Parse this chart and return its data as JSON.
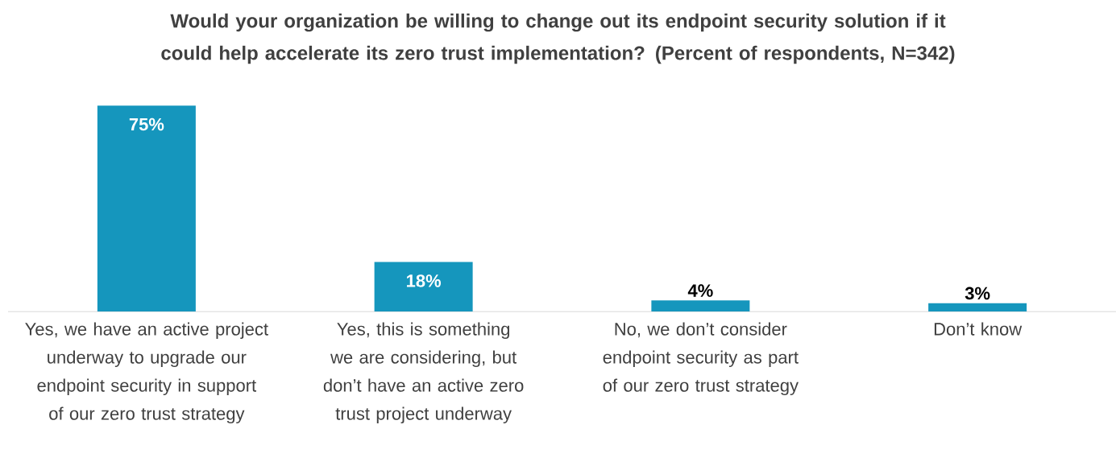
{
  "chart_data": {
    "type": "bar",
    "title": "Would your organization be willing to change out its endpoint security solution if it could help accelerate its zero trust implementation? (Percent of respondents, N=342)",
    "categories": [
      "Yes, we have an active project underway to upgrade our endpoint security in support of our zero trust strategy",
      "Yes, this is something we are considering, but don’t have an active zero trust project underway",
      "No, we don’t consider endpoint security as part of our zero trust strategy",
      "Don’t know"
    ],
    "values": [
      75,
      18,
      4,
      3
    ],
    "value_labels": [
      "75%",
      "18%",
      "4%",
      "3%"
    ],
    "color": "#1596bd"
  }
}
